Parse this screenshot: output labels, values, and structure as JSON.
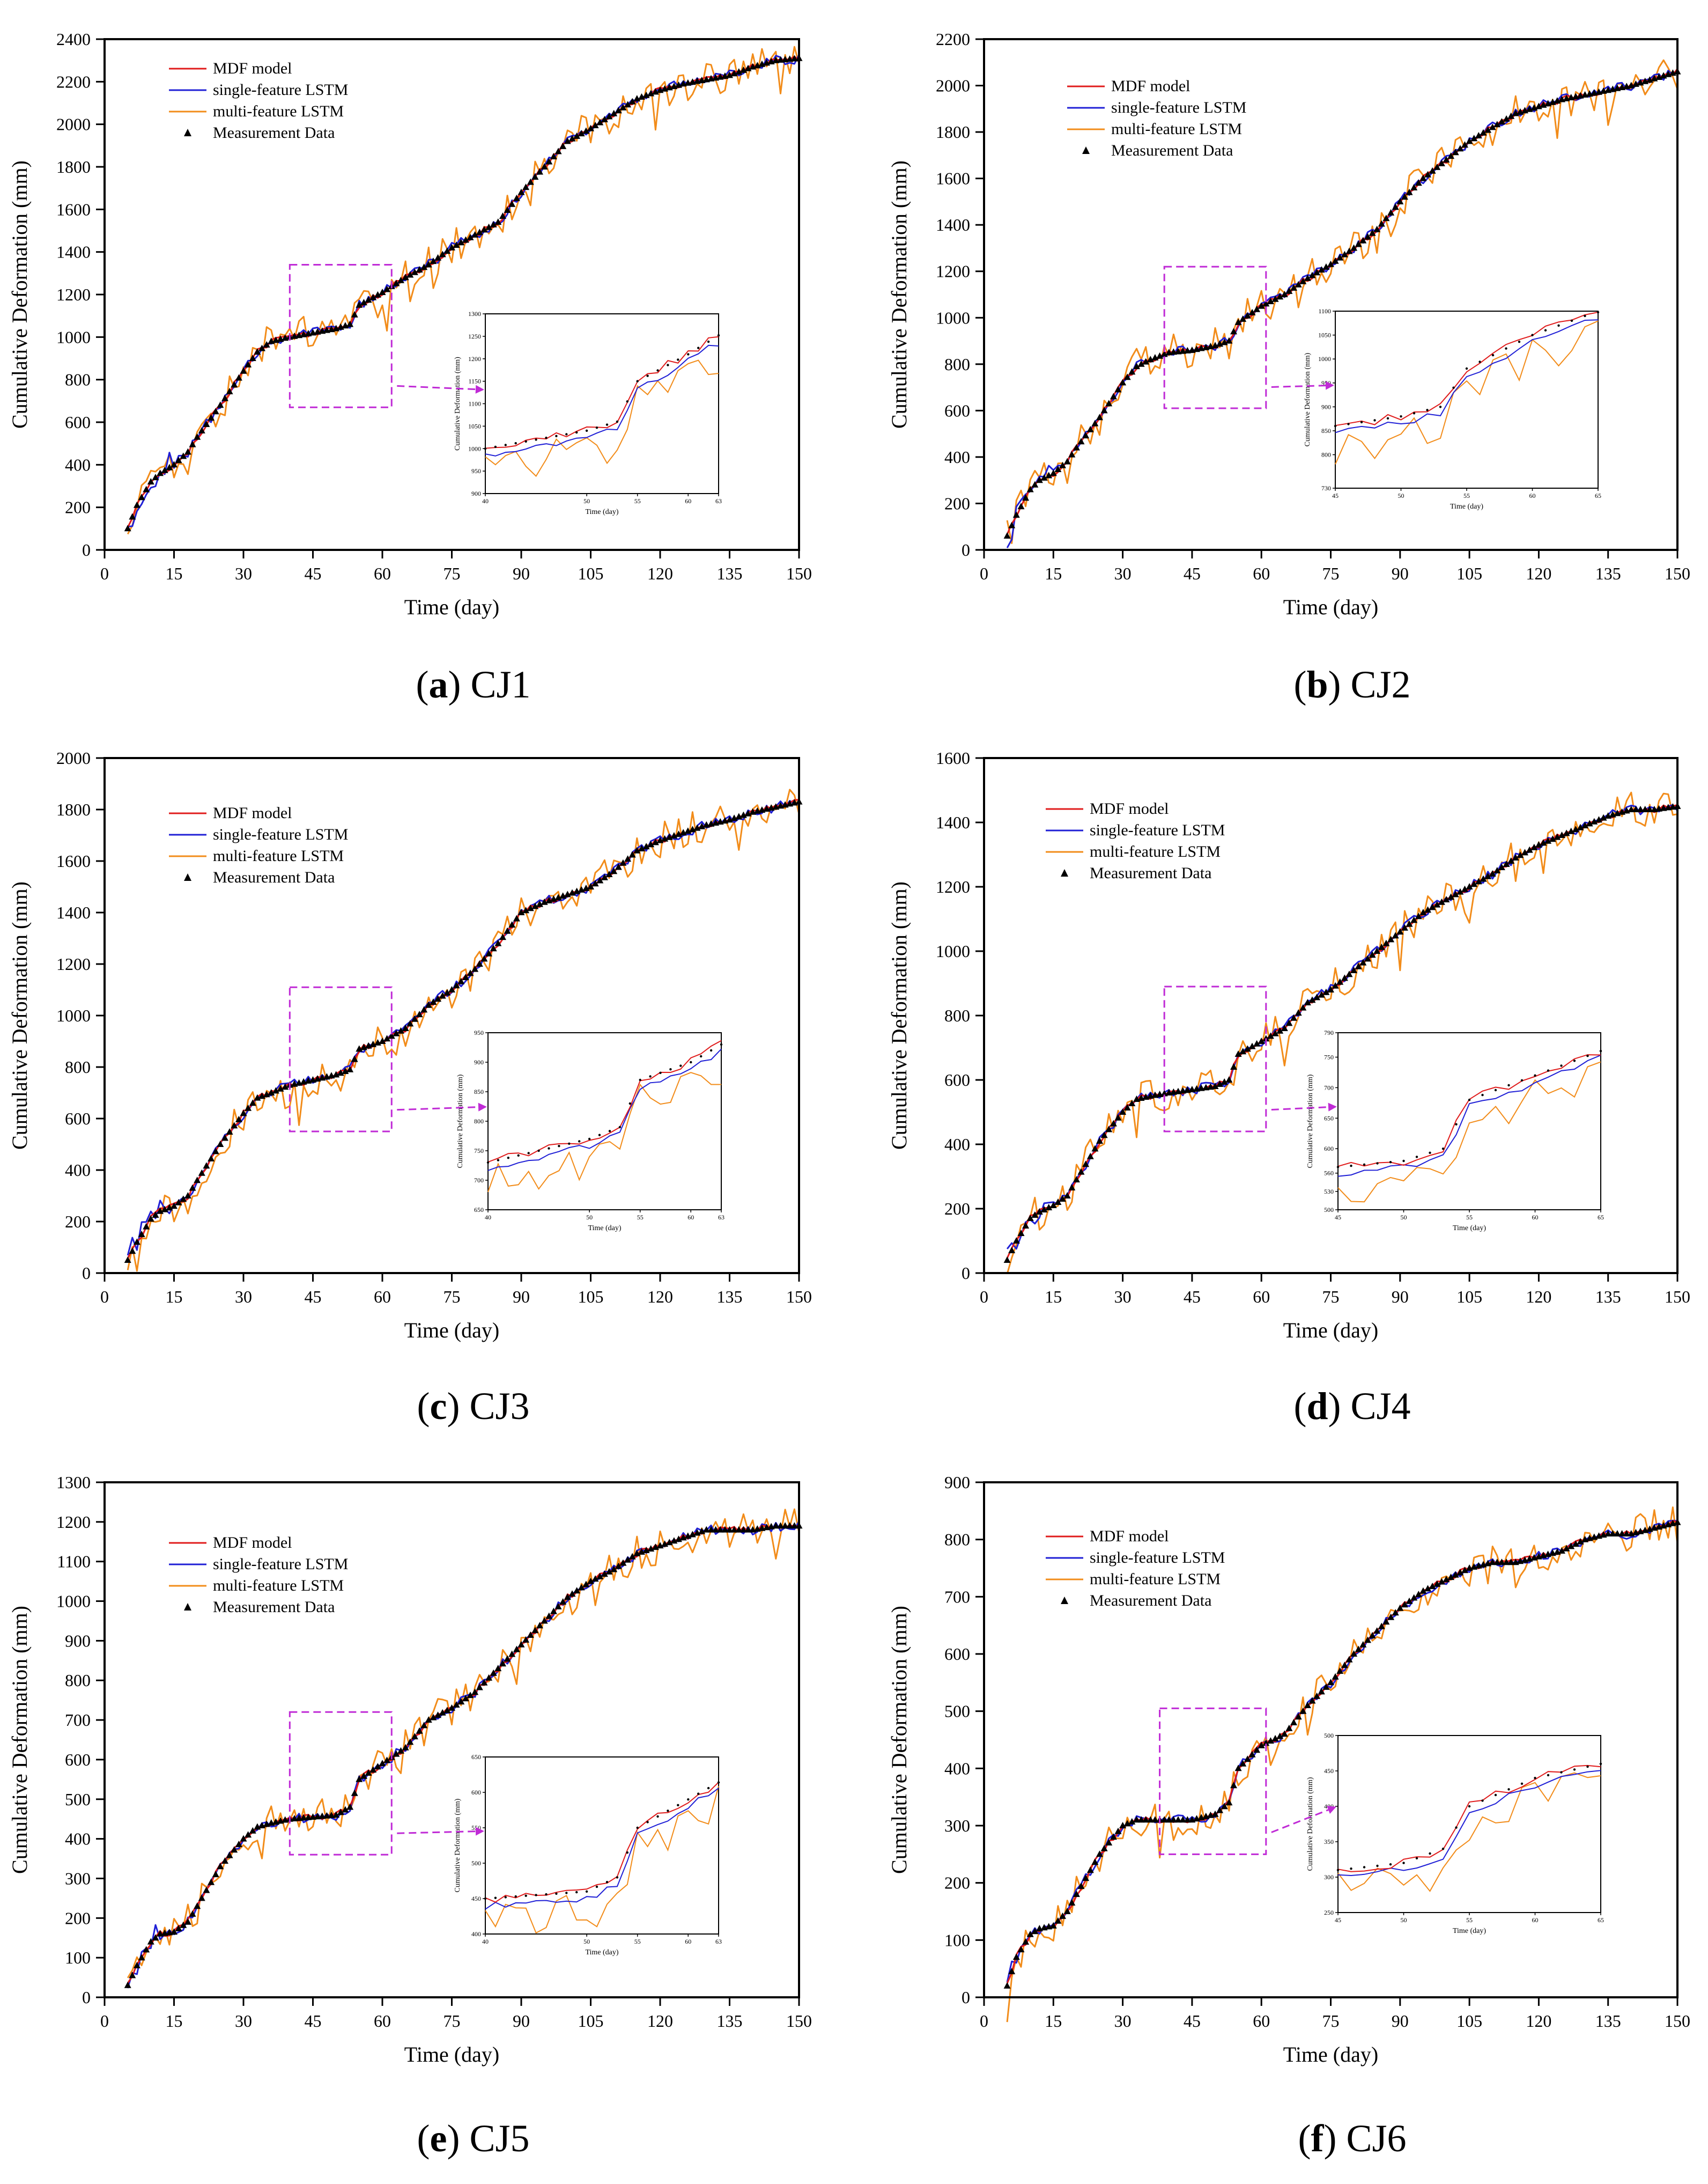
{
  "figure": {
    "series_names": [
      "MDF model",
      "single-feature LSTM",
      "multi-feature LSTM",
      "Measurement Data"
    ],
    "colors": {
      "mdf": "#e01b1b",
      "single": "#1f1fd6",
      "multi": "#f28c1a",
      "meas": "#000000",
      "zoom": "#c02bd6"
    },
    "xlabel": "Time (day)",
    "ylabel": "Cumulative Deformation (mm)",
    "inset_xlabel": "Time (day)",
    "inset_ylabel": "Cumulative Deformation (mm)"
  },
  "chart_data": [
    {
      "type": "line",
      "id": "CJ1",
      "caption_letter": "a",
      "caption_name": "CJ1",
      "x_ticks": [
        0,
        15,
        30,
        45,
        60,
        75,
        90,
        105,
        120,
        135,
        150
      ],
      "y_ticks": [
        0,
        200,
        400,
        600,
        800,
        1000,
        1200,
        1400,
        1600,
        1800,
        2000,
        2200,
        2400
      ],
      "xlim": [
        0,
        150
      ],
      "ylim": [
        0,
        2400
      ],
      "key_days": [
        5,
        7,
        10,
        12,
        15,
        18,
        20,
        25,
        30,
        33,
        36,
        40,
        45,
        50,
        53,
        55,
        60,
        65,
        70,
        75,
        80,
        85,
        90,
        95,
        100,
        105,
        110,
        115,
        120,
        125,
        130,
        135,
        140,
        145,
        150
      ],
      "key_values": [
        100,
        210,
        320,
        360,
        400,
        460,
        530,
        680,
        840,
        930,
        980,
        1000,
        1020,
        1040,
        1060,
        1150,
        1210,
        1280,
        1340,
        1420,
        1480,
        1540,
        1680,
        1800,
        1920,
        1980,
        2050,
        2120,
        2160,
        2190,
        2210,
        2230,
        2270,
        2300,
        2310
      ],
      "zoom_box": {
        "x0": 40,
        "x1": 62,
        "y0": 670,
        "y1": 1340
      },
      "inset": {
        "xlim": [
          40,
          63
        ],
        "ylim": [
          900,
          1300
        ],
        "x_ticks": [
          40,
          50,
          55,
          60,
          63
        ],
        "y_ticks": [
          900,
          950,
          1000,
          1050,
          1100,
          1150,
          1200,
          1250,
          1300
        ]
      }
    },
    {
      "type": "line",
      "id": "CJ2",
      "caption_letter": "b",
      "caption_name": "CJ2",
      "x_ticks": [
        0,
        15,
        30,
        45,
        60,
        75,
        90,
        105,
        120,
        135,
        150
      ],
      "y_ticks": [
        0,
        200,
        400,
        600,
        800,
        1000,
        1200,
        1400,
        1600,
        1800,
        2000,
        2200
      ],
      "xlim": [
        0,
        150
      ],
      "ylim": [
        0,
        2200
      ],
      "key_days": [
        5,
        7,
        10,
        12,
        15,
        18,
        20,
        25,
        30,
        33,
        36,
        40,
        45,
        50,
        53,
        55,
        60,
        65,
        70,
        75,
        80,
        85,
        90,
        95,
        100,
        105,
        110,
        115,
        120,
        125,
        130,
        135,
        140,
        145,
        150
      ],
      "key_values": [
        60,
        150,
        260,
        300,
        330,
        380,
        440,
        570,
        720,
        790,
        820,
        850,
        860,
        880,
        900,
        980,
        1050,
        1100,
        1170,
        1230,
        1300,
        1380,
        1500,
        1600,
        1680,
        1760,
        1820,
        1880,
        1910,
        1940,
        1960,
        1980,
        2000,
        2030,
        2060
      ],
      "zoom_box": {
        "x0": 39,
        "x1": 61,
        "y0": 610,
        "y1": 1220
      },
      "inset": {
        "xlim": [
          45,
          65
        ],
        "ylim": [
          730,
          1100
        ],
        "x_ticks": [
          45,
          50,
          55,
          60,
          65
        ],
        "y_ticks": [
          730,
          800,
          850,
          900,
          950,
          1000,
          1050,
          1100
        ]
      }
    },
    {
      "type": "line",
      "id": "CJ3",
      "caption_letter": "c",
      "caption_name": "CJ3",
      "x_ticks": [
        0,
        15,
        30,
        45,
        60,
        75,
        90,
        105,
        120,
        135,
        150
      ],
      "y_ticks": [
        0,
        200,
        400,
        600,
        800,
        1000,
        1200,
        1400,
        1600,
        1800,
        2000
      ],
      "xlim": [
        0,
        150
      ],
      "ylim": [
        0,
        2000
      ],
      "key_days": [
        5,
        7,
        10,
        12,
        15,
        18,
        20,
        25,
        30,
        33,
        36,
        40,
        45,
        50,
        53,
        55,
        60,
        65,
        70,
        75,
        80,
        85,
        90,
        95,
        100,
        105,
        110,
        115,
        120,
        125,
        130,
        135,
        140,
        145,
        150
      ],
      "key_values": [
        50,
        120,
        210,
        240,
        260,
        300,
        360,
        500,
        620,
        680,
        700,
        730,
        750,
        770,
        790,
        870,
        900,
        950,
        1040,
        1100,
        1180,
        1280,
        1400,
        1440,
        1470,
        1500,
        1560,
        1640,
        1680,
        1710,
        1740,
        1760,
        1790,
        1810,
        1830
      ],
      "zoom_box": {
        "x0": 40,
        "x1": 62,
        "y0": 550,
        "y1": 1110
      },
      "inset": {
        "xlim": [
          40,
          63
        ],
        "ylim": [
          650,
          950
        ],
        "x_ticks": [
          40,
          50,
          55,
          60,
          63
        ],
        "y_ticks": [
          650,
          700,
          750,
          800,
          850,
          900,
          950
        ]
      }
    },
    {
      "type": "line",
      "id": "CJ4",
      "caption_letter": "d",
      "caption_name": "CJ4",
      "x_ticks": [
        0,
        15,
        30,
        45,
        60,
        75,
        90,
        105,
        120,
        135,
        150
      ],
      "y_ticks": [
        0,
        200,
        400,
        600,
        800,
        1000,
        1200,
        1400,
        1600
      ],
      "xlim": [
        0,
        150
      ],
      "ylim": [
        0,
        1600
      ],
      "key_days": [
        5,
        7,
        10,
        12,
        15,
        18,
        20,
        25,
        30,
        33,
        36,
        40,
        45,
        50,
        53,
        55,
        60,
        65,
        70,
        75,
        80,
        85,
        90,
        95,
        100,
        105,
        110,
        115,
        120,
        125,
        130,
        135,
        140,
        145,
        150
      ],
      "key_values": [
        40,
        100,
        170,
        190,
        210,
        240,
        290,
        410,
        500,
        540,
        550,
        560,
        570,
        580,
        600,
        680,
        720,
        760,
        840,
        880,
        940,
        1000,
        1060,
        1120,
        1160,
        1200,
        1240,
        1290,
        1330,
        1360,
        1390,
        1420,
        1440,
        1440,
        1450
      ],
      "zoom_box": {
        "x0": 39,
        "x1": 61,
        "y0": 440,
        "y1": 890
      },
      "inset": {
        "xlim": [
          45,
          65
        ],
        "ylim": [
          500,
          790
        ],
        "x_ticks": [
          45,
          50,
          55,
          60,
          65
        ],
        "y_ticks": [
          500,
          530,
          560,
          600,
          650,
          700,
          750,
          790
        ]
      }
    },
    {
      "type": "line",
      "id": "CJ5",
      "caption_letter": "e",
      "caption_name": "CJ5",
      "x_ticks": [
        0,
        15,
        30,
        45,
        60,
        75,
        90,
        105,
        120,
        135,
        150
      ],
      "y_ticks": [
        0,
        100,
        200,
        300,
        400,
        500,
        600,
        700,
        800,
        900,
        1000,
        1100,
        1200,
        1300
      ],
      "xlim": [
        0,
        150
      ],
      "ylim": [
        0,
        1300
      ],
      "key_days": [
        5,
        7,
        10,
        12,
        15,
        18,
        20,
        25,
        30,
        33,
        36,
        40,
        45,
        50,
        53,
        55,
        60,
        65,
        70,
        75,
        80,
        85,
        90,
        95,
        100,
        105,
        110,
        115,
        120,
        125,
        130,
        135,
        140,
        145,
        150
      ],
      "key_values": [
        30,
        80,
        140,
        160,
        165,
        190,
        230,
        330,
        400,
        430,
        440,
        450,
        455,
        460,
        480,
        550,
        590,
        630,
        700,
        730,
        770,
        830,
        890,
        950,
        1010,
        1050,
        1080,
        1120,
        1140,
        1160,
        1180,
        1180,
        1180,
        1190,
        1190
      ],
      "zoom_box": {
        "x0": 40,
        "x1": 62,
        "y0": 360,
        "y1": 720
      },
      "inset": {
        "xlim": [
          40,
          63
        ],
        "ylim": [
          400,
          650
        ],
        "x_ticks": [
          40,
          50,
          55,
          60,
          63
        ],
        "y_ticks": [
          400,
          450,
          500,
          550,
          600,
          650
        ]
      }
    },
    {
      "type": "line",
      "id": "CJ6",
      "caption_letter": "f",
      "caption_name": "CJ6",
      "x_ticks": [
        0,
        15,
        30,
        45,
        60,
        75,
        90,
        105,
        120,
        135,
        150
      ],
      "y_ticks": [
        0,
        100,
        200,
        300,
        400,
        500,
        600,
        700,
        800,
        900
      ],
      "xlim": [
        0,
        150
      ],
      "ylim": [
        0,
        900
      ],
      "key_days": [
        5,
        7,
        10,
        12,
        15,
        18,
        20,
        25,
        30,
        33,
        36,
        40,
        45,
        50,
        53,
        55,
        60,
        65,
        70,
        75,
        80,
        85,
        90,
        95,
        100,
        105,
        110,
        115,
        120,
        125,
        130,
        135,
        140,
        145,
        150
      ],
      "key_values": [
        20,
        70,
        110,
        120,
        125,
        150,
        180,
        250,
        300,
        310,
        310,
        310,
        310,
        320,
        340,
        400,
        440,
        460,
        510,
        550,
        600,
        640,
        680,
        710,
        730,
        750,
        760,
        760,
        770,
        780,
        800,
        810,
        810,
        820,
        830
      ],
      "zoom_box": {
        "x0": 38,
        "x1": 61,
        "y0": 250,
        "y1": 505
      },
      "inset": {
        "xlim": [
          45,
          65
        ],
        "ylim": [
          250,
          500
        ],
        "x_ticks": [
          45,
          50,
          55,
          60,
          65
        ],
        "y_ticks": [
          250,
          300,
          350,
          400,
          450,
          500
        ]
      }
    }
  ]
}
